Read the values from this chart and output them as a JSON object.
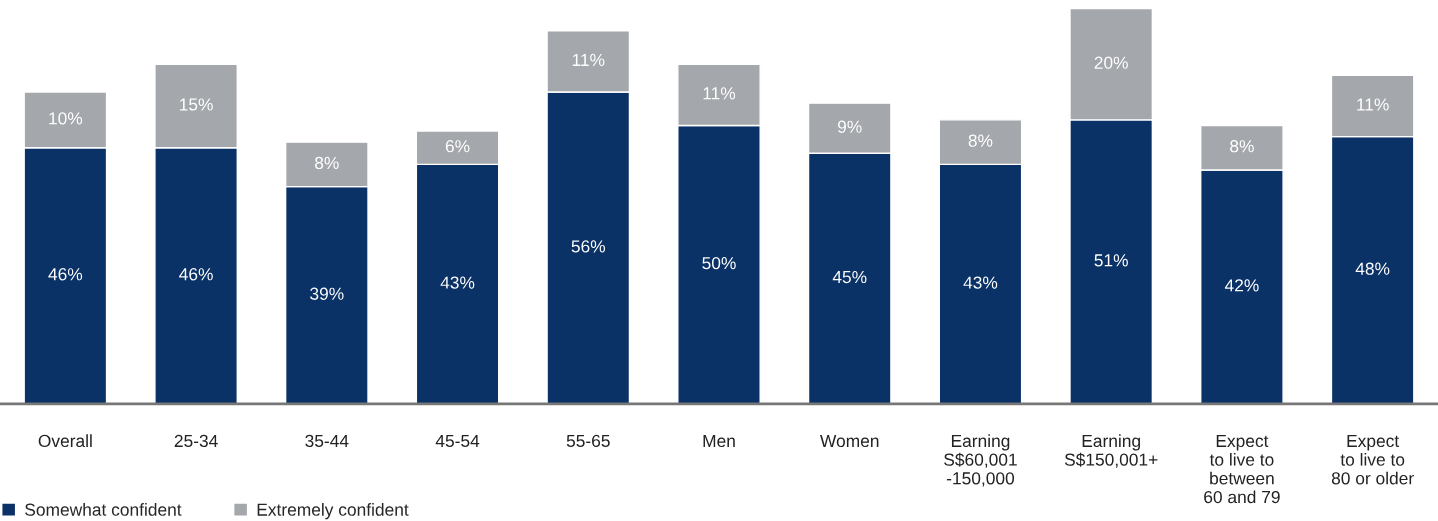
{
  "chart_data": {
    "type": "bar",
    "stacked": true,
    "legend": "bottom left",
    "grid": false,
    "categories": [
      "Overall",
      "25-34",
      "35-44",
      "45-54",
      "55-65",
      "Men",
      "Women",
      "Earning\nS$60,001\n-150,000",
      "Earning\nS$150,001+",
      "Expect\nto live to\nbetween\n60 and 79",
      "Expect\nto live to\n80 or older"
    ],
    "series": [
      {
        "name": "Somewhat confident",
        "color": "#0b3266",
        "values": [
          46,
          46,
          39,
          43,
          56,
          50,
          45,
          43,
          51,
          42,
          48
        ],
        "value_labels": [
          "46%",
          "46%",
          "39%",
          "43%",
          "56%",
          "50%",
          "45%",
          "43%",
          "51%",
          "42%",
          "48%"
        ]
      },
      {
        "name": "Extremely confident",
        "color": "#a4a7ab",
        "values": [
          10,
          15,
          8,
          6,
          11,
          11,
          9,
          8,
          20,
          8,
          11
        ],
        "value_labels": [
          "10%",
          "15%",
          "8%",
          "6%",
          "11%",
          "11%",
          "9%",
          "8%",
          "20%",
          "8%",
          "11%"
        ]
      }
    ]
  }
}
